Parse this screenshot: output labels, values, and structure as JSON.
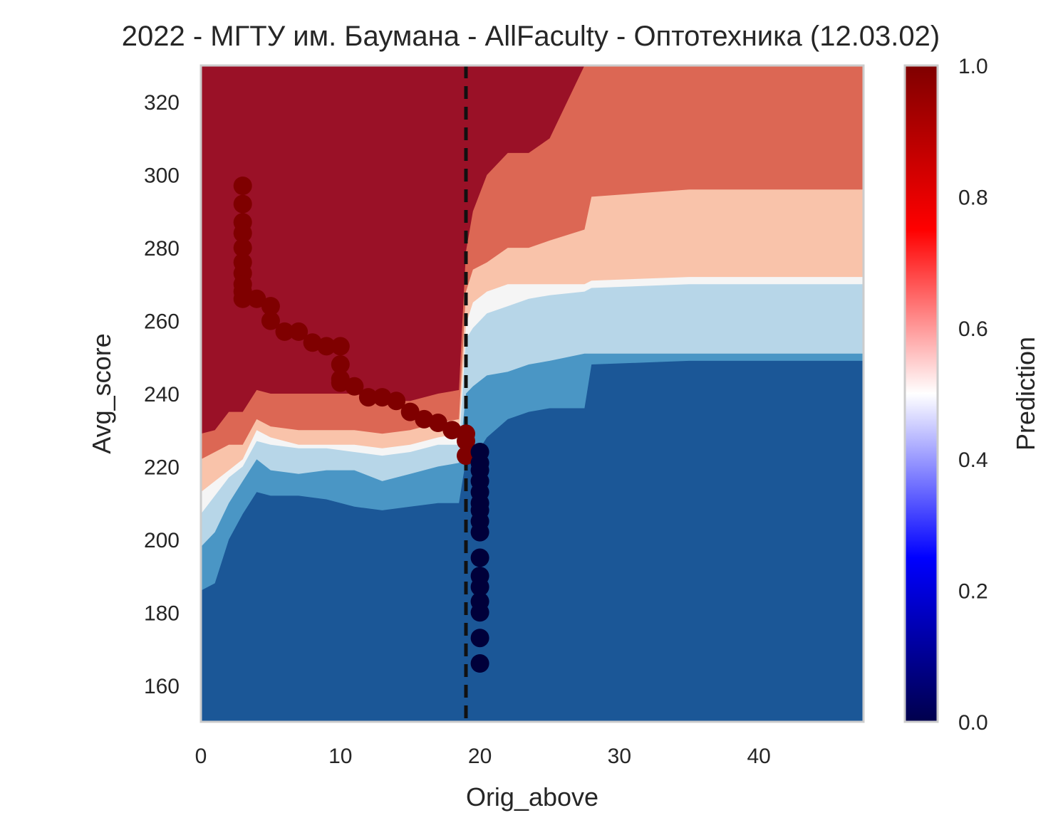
{
  "chart_data": {
    "type": "heatmap",
    "title": "2022 - МГТУ им. Баумана - AllFaculty - Оптотехника (12.03.02)",
    "xlabel": "Orig_above",
    "ylabel": "Avg_score",
    "xlim": [
      0,
      47.5
    ],
    "ylim": [
      150,
      330
    ],
    "x_ticks": [
      0,
      10,
      20,
      30,
      40
    ],
    "y_ticks": [
      160,
      180,
      200,
      220,
      240,
      260,
      280,
      300,
      320
    ],
    "grid": false,
    "threshold_line": {
      "axis": "x",
      "value": 19,
      "style": "dashed",
      "color": "#111111"
    },
    "contour": {
      "levels": [
        0.0,
        0.2,
        0.35,
        0.5,
        0.6,
        0.8,
        1.0
      ],
      "level_colors": [
        "#1b5797",
        "#4a96c5",
        "#b7d6e8",
        "#f5f5f5",
        "#f9c3aa",
        "#dc6754",
        "#9a1127"
      ],
      "x_grid": [
        0,
        1,
        2,
        3,
        4,
        5,
        7,
        9,
        11,
        13,
        15,
        17,
        18.5,
        19,
        19.5,
        20.5,
        22,
        23.5,
        25,
        27.5,
        28,
        35,
        47.5
      ],
      "boundaries": {
        "b1": [
          186,
          188,
          200,
          207,
          213,
          212,
          212,
          211,
          209,
          208,
          209,
          210,
          210,
          222,
          222,
          228,
          233,
          235,
          236,
          236,
          248,
          249,
          249
        ],
        "b2": [
          198,
          202,
          210,
          216,
          222,
          219,
          218,
          219,
          219,
          216,
          218,
          220,
          221,
          240,
          242,
          245,
          246,
          248,
          249,
          251,
          251,
          251,
          251
        ],
        "b3": [
          207,
          212,
          217,
          220,
          227,
          226,
          225,
          225,
          224,
          223,
          224,
          226,
          226,
          255,
          258,
          262,
          264,
          266,
          267,
          268,
          269,
          270,
          270
        ],
        "b4": [
          213,
          216,
          219,
          222,
          230,
          228,
          226,
          226,
          226,
          225,
          226,
          228,
          229,
          259,
          265,
          268,
          270,
          270,
          270,
          270,
          271,
          272,
          272
        ],
        "b5": [
          222,
          224,
          226,
          226,
          233,
          231,
          230,
          230,
          230,
          229,
          230,
          232,
          233,
          268,
          274,
          276,
          280,
          280,
          282,
          285,
          294,
          296,
          296
        ],
        "b6": [
          229,
          230,
          235,
          235,
          241,
          240,
          240,
          240,
          240,
          238,
          238,
          240,
          241,
          279,
          290,
          300,
          306,
          306,
          310,
          330,
          330,
          330,
          330
        ]
      }
    },
    "scatter": {
      "x": [
        3,
        3,
        3,
        3,
        3,
        3,
        3,
        3,
        3,
        3,
        4,
        5,
        5,
        6,
        7,
        8,
        9,
        10,
        10,
        10,
        10,
        11,
        12,
        13,
        14,
        15,
        16,
        17,
        18,
        19,
        19,
        19,
        20,
        20,
        20,
        20,
        20,
        20,
        20,
        20,
        20,
        20,
        20,
        20,
        20,
        20,
        20,
        20
      ],
      "y": [
        297,
        292,
        287,
        284,
        280,
        276,
        273,
        270,
        268,
        266,
        266,
        264,
        260,
        257,
        257,
        254,
        253,
        253,
        248,
        244,
        243,
        242,
        239,
        239,
        238,
        235,
        233,
        232,
        230,
        229,
        227,
        223,
        224,
        221,
        219,
        216,
        213,
        210,
        208,
        205,
        202,
        195,
        190,
        187,
        183,
        180,
        173,
        166
      ],
      "classes": [
        1,
        1,
        1,
        1,
        1,
        1,
        1,
        1,
        1,
        1,
        1,
        1,
        1,
        1,
        1,
        1,
        1,
        1,
        1,
        1,
        1,
        1,
        1,
        1,
        1,
        1,
        1,
        1,
        1,
        1,
        1,
        1,
        0,
        0,
        0,
        0,
        0,
        0,
        0,
        0,
        0,
        0,
        0,
        0,
        0,
        0,
        0,
        0
      ],
      "class_colors": {
        "1": "#7f0000",
        "0": "#00003a"
      }
    },
    "colorbar": {
      "label": "Prediction",
      "range": [
        0,
        1
      ],
      "ticks": [
        "0.0",
        "0.2",
        "0.4",
        "0.6",
        "0.8",
        "1.0"
      ],
      "colormap": "seismic",
      "stops": [
        {
          "offset": 0.0,
          "color": "#00004c"
        },
        {
          "offset": 0.25,
          "color": "#0000ff"
        },
        {
          "offset": 0.5,
          "color": "#ffffff"
        },
        {
          "offset": 0.75,
          "color": "#ff0000"
        },
        {
          "offset": 1.0,
          "color": "#7f0000"
        }
      ]
    },
    "frame_color": "#cccccc"
  }
}
